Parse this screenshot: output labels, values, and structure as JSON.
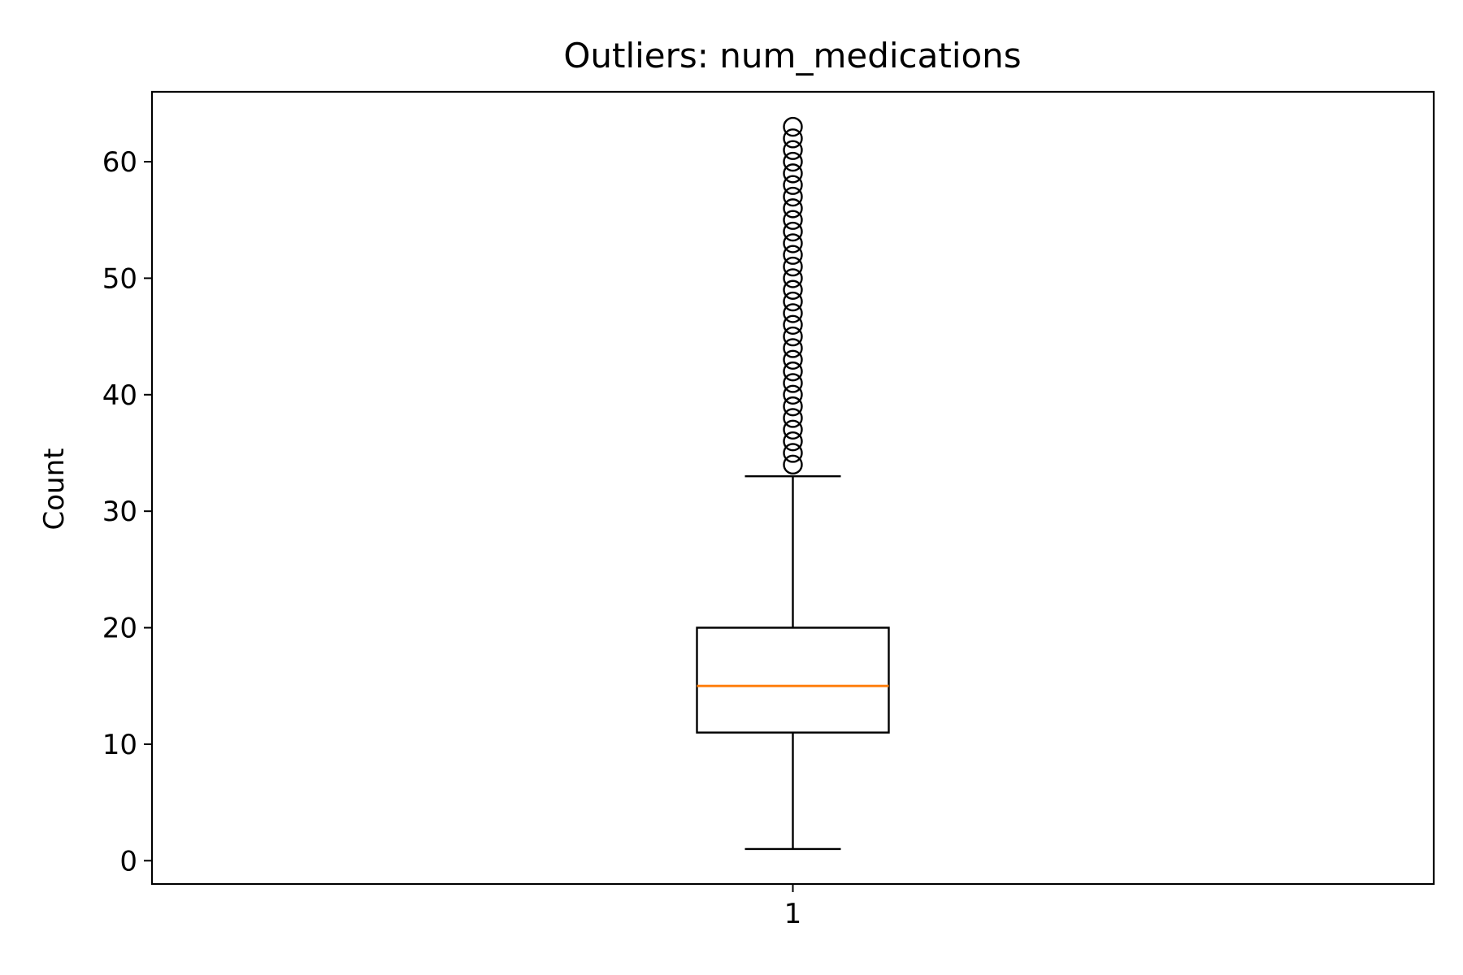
{
  "chart_data": {
    "type": "box",
    "title": "Outliers: num_medications",
    "xlabel": "",
    "ylabel": "Count",
    "categories": [
      "1"
    ],
    "ylim": [
      -2,
      66
    ],
    "y_ticks": [
      0,
      10,
      20,
      30,
      40,
      50,
      60
    ],
    "grid": false,
    "legend": "none",
    "boxes": [
      {
        "category": "1",
        "whisker_low": 1,
        "q1": 11,
        "median": 15,
        "q3": 20,
        "whisker_high": 33,
        "outliers": [
          34,
          35,
          36,
          37,
          38,
          39,
          40,
          41,
          42,
          43,
          44,
          45,
          46,
          47,
          48,
          49,
          50,
          51,
          52,
          53,
          54,
          55,
          56,
          57,
          58,
          59,
          60,
          61,
          62,
          63
        ]
      }
    ],
    "colors": {
      "box": "#000000",
      "median": "#ff7f0e",
      "outlier": "#000000"
    }
  }
}
